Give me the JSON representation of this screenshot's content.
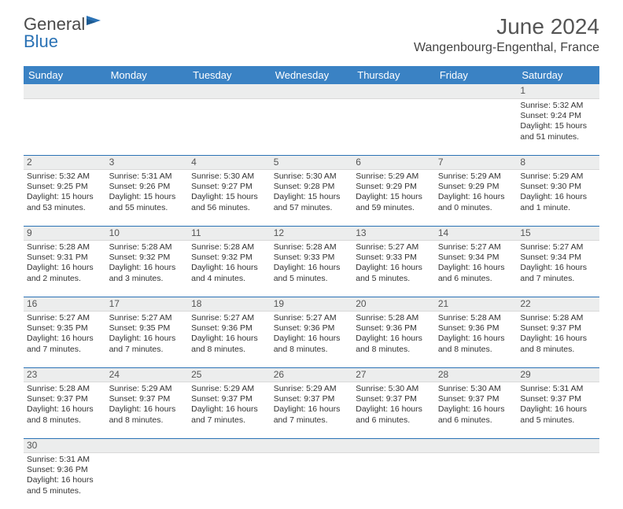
{
  "brand": {
    "text1": "General",
    "text2": "Blue"
  },
  "title": "June 2024",
  "location": "Wangenbourg-Engenthal, France",
  "weekdays": [
    "Sunday",
    "Monday",
    "Tuesday",
    "Wednesday",
    "Thursday",
    "Friday",
    "Saturday"
  ],
  "header_bg": "#3a82c4",
  "daynum_bg": "#eceded",
  "row_border": "#2a72b5",
  "weeks": [
    [
      null,
      null,
      null,
      null,
      null,
      null,
      {
        "n": 1,
        "sr": "5:32 AM",
        "ss": "9:24 PM",
        "dl": "15 hours and 51 minutes."
      }
    ],
    [
      {
        "n": 2,
        "sr": "5:32 AM",
        "ss": "9:25 PM",
        "dl": "15 hours and 53 minutes."
      },
      {
        "n": 3,
        "sr": "5:31 AM",
        "ss": "9:26 PM",
        "dl": "15 hours and 55 minutes."
      },
      {
        "n": 4,
        "sr": "5:30 AM",
        "ss": "9:27 PM",
        "dl": "15 hours and 56 minutes."
      },
      {
        "n": 5,
        "sr": "5:30 AM",
        "ss": "9:28 PM",
        "dl": "15 hours and 57 minutes."
      },
      {
        "n": 6,
        "sr": "5:29 AM",
        "ss": "9:29 PM",
        "dl": "15 hours and 59 minutes."
      },
      {
        "n": 7,
        "sr": "5:29 AM",
        "ss": "9:29 PM",
        "dl": "16 hours and 0 minutes."
      },
      {
        "n": 8,
        "sr": "5:29 AM",
        "ss": "9:30 PM",
        "dl": "16 hours and 1 minute."
      }
    ],
    [
      {
        "n": 9,
        "sr": "5:28 AM",
        "ss": "9:31 PM",
        "dl": "16 hours and 2 minutes."
      },
      {
        "n": 10,
        "sr": "5:28 AM",
        "ss": "9:32 PM",
        "dl": "16 hours and 3 minutes."
      },
      {
        "n": 11,
        "sr": "5:28 AM",
        "ss": "9:32 PM",
        "dl": "16 hours and 4 minutes."
      },
      {
        "n": 12,
        "sr": "5:28 AM",
        "ss": "9:33 PM",
        "dl": "16 hours and 5 minutes."
      },
      {
        "n": 13,
        "sr": "5:27 AM",
        "ss": "9:33 PM",
        "dl": "16 hours and 5 minutes."
      },
      {
        "n": 14,
        "sr": "5:27 AM",
        "ss": "9:34 PM",
        "dl": "16 hours and 6 minutes."
      },
      {
        "n": 15,
        "sr": "5:27 AM",
        "ss": "9:34 PM",
        "dl": "16 hours and 7 minutes."
      }
    ],
    [
      {
        "n": 16,
        "sr": "5:27 AM",
        "ss": "9:35 PM",
        "dl": "16 hours and 7 minutes."
      },
      {
        "n": 17,
        "sr": "5:27 AM",
        "ss": "9:35 PM",
        "dl": "16 hours and 7 minutes."
      },
      {
        "n": 18,
        "sr": "5:27 AM",
        "ss": "9:36 PM",
        "dl": "16 hours and 8 minutes."
      },
      {
        "n": 19,
        "sr": "5:27 AM",
        "ss": "9:36 PM",
        "dl": "16 hours and 8 minutes."
      },
      {
        "n": 20,
        "sr": "5:28 AM",
        "ss": "9:36 PM",
        "dl": "16 hours and 8 minutes."
      },
      {
        "n": 21,
        "sr": "5:28 AM",
        "ss": "9:36 PM",
        "dl": "16 hours and 8 minutes."
      },
      {
        "n": 22,
        "sr": "5:28 AM",
        "ss": "9:37 PM",
        "dl": "16 hours and 8 minutes."
      }
    ],
    [
      {
        "n": 23,
        "sr": "5:28 AM",
        "ss": "9:37 PM",
        "dl": "16 hours and 8 minutes."
      },
      {
        "n": 24,
        "sr": "5:29 AM",
        "ss": "9:37 PM",
        "dl": "16 hours and 8 minutes."
      },
      {
        "n": 25,
        "sr": "5:29 AM",
        "ss": "9:37 PM",
        "dl": "16 hours and 7 minutes."
      },
      {
        "n": 26,
        "sr": "5:29 AM",
        "ss": "9:37 PM",
        "dl": "16 hours and 7 minutes."
      },
      {
        "n": 27,
        "sr": "5:30 AM",
        "ss": "9:37 PM",
        "dl": "16 hours and 6 minutes."
      },
      {
        "n": 28,
        "sr": "5:30 AM",
        "ss": "9:37 PM",
        "dl": "16 hours and 6 minutes."
      },
      {
        "n": 29,
        "sr": "5:31 AM",
        "ss": "9:37 PM",
        "dl": "16 hours and 5 minutes."
      }
    ],
    [
      {
        "n": 30,
        "sr": "5:31 AM",
        "ss": "9:36 PM",
        "dl": "16 hours and 5 minutes."
      },
      null,
      null,
      null,
      null,
      null,
      null
    ]
  ],
  "labels": {
    "sunrise": "Sunrise:",
    "sunset": "Sunset:",
    "daylight": "Daylight:"
  }
}
